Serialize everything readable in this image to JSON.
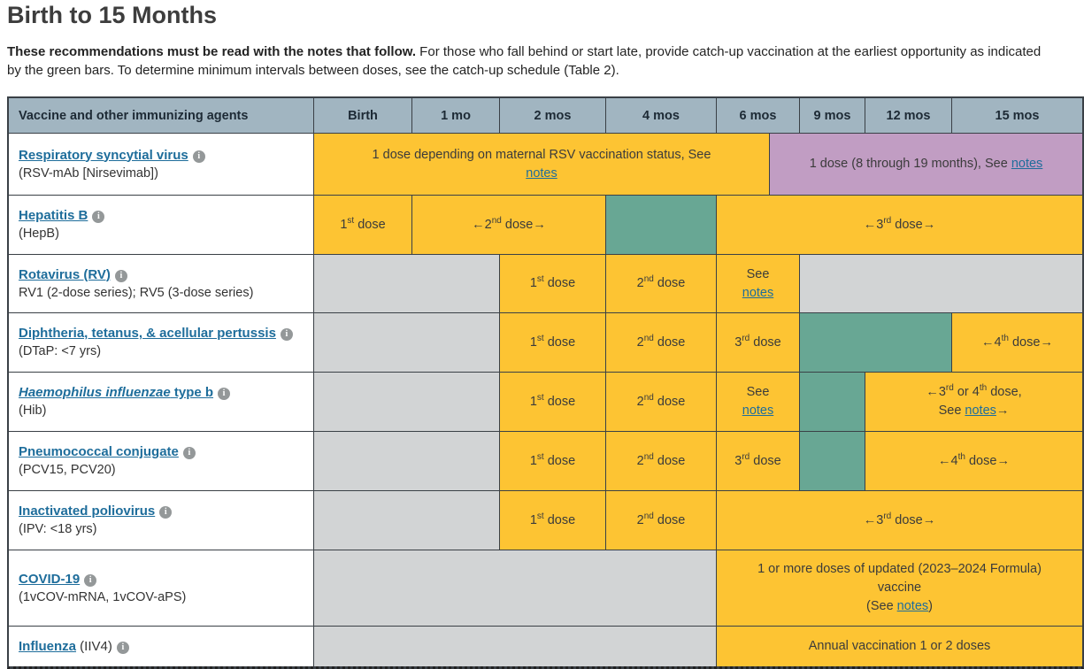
{
  "page": {
    "title": "Birth to 15 Months",
    "intro_bold": "These recommendations must be read with the notes that follow.",
    "intro_rest": " For those who fall behind or start late, provide catch-up vaccination at the earliest opportunity as indicated by the green bars. To determine minimum intervals between doses, see the catch-up schedule (Table 2)."
  },
  "colors": {
    "yellow": "#fdc433",
    "green": "#68a794",
    "purple": "#c19dc3",
    "gray": "#d2d4d5",
    "header": "#a1b5c1",
    "link": "#1e6d9b",
    "grid": "#3a4046"
  },
  "table": {
    "columns": [
      {
        "label": "Vaccine and other immunizing agents",
        "span": 1
      },
      {
        "label": "Birth",
        "span": 1
      },
      {
        "label": "1 mo",
        "span": 1
      },
      {
        "label": "2 mos",
        "span": 1
      },
      {
        "label": "4 mos",
        "span": 1
      },
      {
        "label": "6 mos",
        "span": 2
      },
      {
        "label": "9 mos",
        "span": 1
      },
      {
        "label": "12 mos",
        "span": 1
      },
      {
        "label": "15 mos",
        "span": 1
      }
    ],
    "rows": [
      {
        "id": "rsv",
        "label": {
          "line1": [
            {
              "t": "vlink",
              "v": "Respiratory syncytial virus"
            },
            {
              "t": "icon"
            }
          ],
          "line2": "(RSV-mAb [Nirsevimab])"
        },
        "cells": [
          {
            "color": "yellow",
            "span": 5,
            "lines": [
              [
                {
                  "t": "text",
                  "v": "1 dose depending on maternal RSV vaccination status, See"
                }
              ],
              [
                {
                  "t": "link",
                  "v": "notes"
                }
              ]
            ]
          },
          {
            "color": "purple",
            "span": 4,
            "lines": [
              [
                {
                  "t": "text",
                  "v": "1 dose (8 through 19 months), See "
                },
                {
                  "t": "link",
                  "v": "notes"
                }
              ]
            ]
          }
        ]
      },
      {
        "id": "hepb",
        "label": {
          "line1": [
            {
              "t": "vlink",
              "v": "Hepatitis B"
            },
            {
              "t": "icon"
            }
          ],
          "line2": "(HepB)"
        },
        "cells": [
          {
            "color": "yellow",
            "span": 1,
            "lines": [
              [
                {
                  "t": "text",
                  "v": "1"
                },
                {
                  "t": "sup",
                  "v": "st"
                },
                {
                  "t": "text",
                  "v": " dose"
                }
              ]
            ]
          },
          {
            "color": "yellow",
            "span": 2,
            "lines": [
              [
                {
                  "t": "text",
                  "v": "←2"
                },
                {
                  "t": "sup",
                  "v": "nd"
                },
                {
                  "t": "text",
                  "v": " dose→"
                }
              ]
            ]
          },
          {
            "color": "green",
            "span": 1
          },
          {
            "color": "yellow",
            "span": 5,
            "lines": [
              [
                {
                  "t": "text",
                  "v": "←3"
                },
                {
                  "t": "sup",
                  "v": "rd"
                },
                {
                  "t": "text",
                  "v": " dose→"
                }
              ]
            ]
          }
        ]
      },
      {
        "id": "rotavirus",
        "label": {
          "line1": [
            {
              "t": "vlink",
              "v": "Rotavirus (RV)"
            },
            {
              "t": "icon"
            }
          ],
          "line2": "RV1 (2-dose series); RV5 (3-dose series)"
        },
        "cells": [
          {
            "color": "gray",
            "span": 2
          },
          {
            "color": "yellow",
            "span": 1,
            "lines": [
              [
                {
                  "t": "text",
                  "v": "1"
                },
                {
                  "t": "sup",
                  "v": "st"
                },
                {
                  "t": "text",
                  "v": " dose"
                }
              ]
            ]
          },
          {
            "color": "yellow",
            "span": 1,
            "lines": [
              [
                {
                  "t": "text",
                  "v": "2"
                },
                {
                  "t": "sup",
                  "v": "nd"
                },
                {
                  "t": "text",
                  "v": " dose"
                }
              ]
            ]
          },
          {
            "color": "yellow",
            "span": 2,
            "lines": [
              [
                {
                  "t": "text",
                  "v": "See"
                }
              ],
              [
                {
                  "t": "link",
                  "v": "notes"
                }
              ]
            ]
          },
          {
            "color": "gray",
            "span": 3
          }
        ]
      },
      {
        "id": "dtap",
        "label": {
          "line1": [
            {
              "t": "vlink",
              "v": "Diphtheria, tetanus, & acellular pertussis"
            },
            {
              "t": "icon"
            }
          ],
          "line2": "(DTaP: <7 yrs)"
        },
        "cells": [
          {
            "color": "gray",
            "span": 2
          },
          {
            "color": "yellow",
            "span": 1,
            "lines": [
              [
                {
                  "t": "text",
                  "v": "1"
                },
                {
                  "t": "sup",
                  "v": "st"
                },
                {
                  "t": "text",
                  "v": " dose"
                }
              ]
            ]
          },
          {
            "color": "yellow",
            "span": 1,
            "lines": [
              [
                {
                  "t": "text",
                  "v": "2"
                },
                {
                  "t": "sup",
                  "v": "nd"
                },
                {
                  "t": "text",
                  "v": " dose"
                }
              ]
            ]
          },
          {
            "color": "yellow",
            "span": 2,
            "lines": [
              [
                {
                  "t": "text",
                  "v": "3"
                },
                {
                  "t": "sup",
                  "v": "rd"
                },
                {
                  "t": "text",
                  "v": " dose"
                }
              ]
            ]
          },
          {
            "color": "green",
            "span": 2
          },
          {
            "color": "yellow",
            "span": 1,
            "lines": [
              [
                {
                  "t": "text",
                  "v": "←4"
                },
                {
                  "t": "sup",
                  "v": "th"
                },
                {
                  "t": "text",
                  "v": " dose→"
                }
              ]
            ]
          }
        ]
      },
      {
        "id": "hib",
        "label": {
          "line1": [
            {
              "t": "vlinki",
              "v": "Haemophilus influenzae"
            },
            {
              "t": "vlink",
              "v": " type b"
            },
            {
              "t": "icon"
            }
          ],
          "line2": "(Hib)"
        },
        "cells": [
          {
            "color": "gray",
            "span": 2
          },
          {
            "color": "yellow",
            "span": 1,
            "lines": [
              [
                {
                  "t": "text",
                  "v": "1"
                },
                {
                  "t": "sup",
                  "v": "st"
                },
                {
                  "t": "text",
                  "v": " dose"
                }
              ]
            ]
          },
          {
            "color": "yellow",
            "span": 1,
            "lines": [
              [
                {
                  "t": "text",
                  "v": "2"
                },
                {
                  "t": "sup",
                  "v": "nd"
                },
                {
                  "t": "text",
                  "v": " dose"
                }
              ]
            ]
          },
          {
            "color": "yellow",
            "span": 2,
            "lines": [
              [
                {
                  "t": "text",
                  "v": "See"
                }
              ],
              [
                {
                  "t": "link",
                  "v": "notes"
                }
              ]
            ]
          },
          {
            "color": "green",
            "span": 1
          },
          {
            "color": "yellow",
            "span": 2,
            "lines": [
              [
                {
                  "t": "text",
                  "v": "←3"
                },
                {
                  "t": "sup",
                  "v": "rd"
                },
                {
                  "t": "text",
                  "v": " or 4"
                },
                {
                  "t": "sup",
                  "v": "th"
                },
                {
                  "t": "text",
                  "v": " dose,"
                }
              ],
              [
                {
                  "t": "text",
                  "v": "See "
                },
                {
                  "t": "link",
                  "v": "notes"
                },
                {
                  "t": "text",
                  "v": "→"
                }
              ]
            ]
          }
        ]
      },
      {
        "id": "pcv",
        "label": {
          "line1": [
            {
              "t": "vlink",
              "v": "Pneumococcal conjugate"
            },
            {
              "t": "icon"
            }
          ],
          "line2": "(PCV15, PCV20)"
        },
        "cells": [
          {
            "color": "gray",
            "span": 2
          },
          {
            "color": "yellow",
            "span": 1,
            "lines": [
              [
                {
                  "t": "text",
                  "v": "1"
                },
                {
                  "t": "sup",
                  "v": "st"
                },
                {
                  "t": "text",
                  "v": " dose"
                }
              ]
            ]
          },
          {
            "color": "yellow",
            "span": 1,
            "lines": [
              [
                {
                  "t": "text",
                  "v": "2"
                },
                {
                  "t": "sup",
                  "v": "nd"
                },
                {
                  "t": "text",
                  "v": " dose"
                }
              ]
            ]
          },
          {
            "color": "yellow",
            "span": 2,
            "lines": [
              [
                {
                  "t": "text",
                  "v": "3"
                },
                {
                  "t": "sup",
                  "v": "rd"
                },
                {
                  "t": "text",
                  "v": " dose"
                }
              ]
            ]
          },
          {
            "color": "green",
            "span": 1
          },
          {
            "color": "yellow",
            "span": 2,
            "lines": [
              [
                {
                  "t": "text",
                  "v": "←4"
                },
                {
                  "t": "sup",
                  "v": "th"
                },
                {
                  "t": "text",
                  "v": " dose→"
                }
              ]
            ]
          }
        ]
      },
      {
        "id": "ipv",
        "label": {
          "line1": [
            {
              "t": "vlink",
              "v": "Inactivated poliovirus"
            },
            {
              "t": "icon"
            }
          ],
          "line2": "(IPV: <18 yrs)"
        },
        "cells": [
          {
            "color": "gray",
            "span": 2
          },
          {
            "color": "yellow",
            "span": 1,
            "lines": [
              [
                {
                  "t": "text",
                  "v": "1"
                },
                {
                  "t": "sup",
                  "v": "st"
                },
                {
                  "t": "text",
                  "v": " dose"
                }
              ]
            ]
          },
          {
            "color": "yellow",
            "span": 1,
            "lines": [
              [
                {
                  "t": "text",
                  "v": "2"
                },
                {
                  "t": "sup",
                  "v": "nd"
                },
                {
                  "t": "text",
                  "v": " dose"
                }
              ]
            ]
          },
          {
            "color": "yellow",
            "span": 5,
            "lines": [
              [
                {
                  "t": "text",
                  "v": "←3"
                },
                {
                  "t": "sup",
                  "v": "rd"
                },
                {
                  "t": "text",
                  "v": " dose→"
                }
              ]
            ]
          }
        ]
      },
      {
        "id": "covid19",
        "label": {
          "line1": [
            {
              "t": "vlink",
              "v": "COVID-19"
            },
            {
              "t": "icon"
            }
          ],
          "line2": "(1vCOV-mRNA, 1vCOV-aPS)"
        },
        "cells": [
          {
            "color": "gray",
            "span": 4
          },
          {
            "color": "yellow",
            "span": 5,
            "lines": [
              [
                {
                  "t": "text",
                  "v": "1 or more doses of updated (2023–2024 Formula)"
                }
              ],
              [
                {
                  "t": "text",
                  "v": "vaccine"
                }
              ],
              [
                {
                  "t": "text",
                  "v": "(See "
                },
                {
                  "t": "link",
                  "v": "notes"
                },
                {
                  "t": "text",
                  "v": ")"
                }
              ]
            ]
          }
        ]
      },
      {
        "id": "influenza",
        "label": {
          "line1": [
            {
              "t": "vlink",
              "v": "Influenza"
            },
            {
              "t": "text",
              "v": " (IIV4)"
            },
            {
              "t": "icon"
            }
          ],
          "line2": ""
        },
        "cells": [
          {
            "color": "gray",
            "span": 4
          },
          {
            "color": "yellow",
            "span": 5,
            "lines": [
              [
                {
                  "t": "text",
                  "v": "Annual vaccination 1 or 2 doses"
                }
              ]
            ]
          }
        ]
      }
    ]
  }
}
